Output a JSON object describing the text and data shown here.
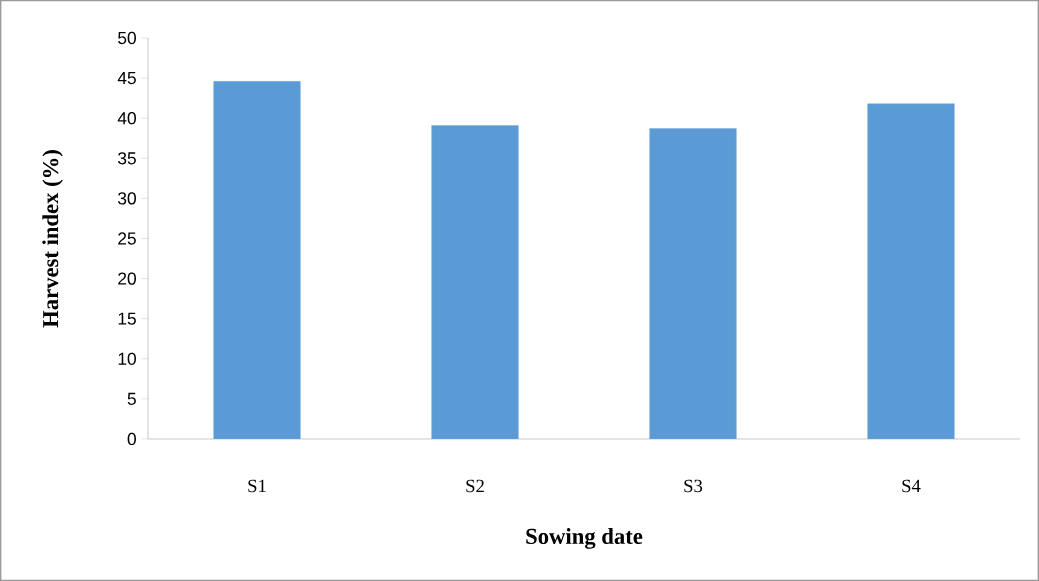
{
  "chart_data": {
    "type": "bar",
    "xlabel": "Sowing date",
    "ylabel": "Harvest index (%)",
    "categories": [
      "S1",
      "S2",
      "S3",
      "S4"
    ],
    "values": [
      44.6,
      39.1,
      38.7,
      41.8
    ],
    "color": "#5b9bd5",
    "ylim": [
      0,
      50
    ],
    "yticks": [
      0,
      5,
      10,
      15,
      20,
      25,
      30,
      35,
      40,
      45,
      50
    ],
    "grid": false
  }
}
